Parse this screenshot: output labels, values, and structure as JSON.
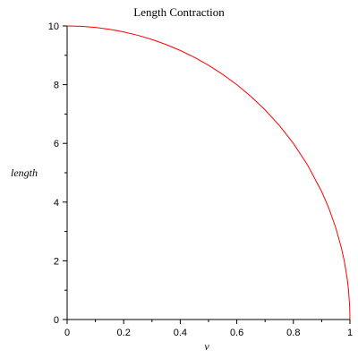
{
  "chart_data": {
    "type": "line",
    "title": "Length Contraction",
    "xlabel": "v",
    "ylabel": "length",
    "xlim": [
      0,
      1
    ],
    "ylim": [
      0,
      10
    ],
    "xticks": [
      "0",
      "0.2",
      "0.4",
      "0.6",
      "0.8",
      "1"
    ],
    "yticks": [
      "0",
      "2",
      "4",
      "6",
      "8",
      "10"
    ],
    "grid": false,
    "series": [
      {
        "color": "#ff0000",
        "x": [
          0,
          0.05,
          0.1,
          0.15,
          0.2,
          0.25,
          0.3,
          0.35,
          0.4,
          0.45,
          0.5,
          0.55,
          0.6,
          0.65,
          0.7,
          0.75,
          0.8,
          0.85,
          0.9,
          0.925,
          0.95,
          0.97,
          0.98,
          0.99,
          0.995,
          0.999,
          1
        ],
        "values": [
          10,
          9.987,
          9.95,
          9.887,
          9.798,
          9.682,
          9.539,
          9.367,
          9.165,
          8.93,
          8.66,
          8.352,
          8.0,
          7.599,
          7.141,
          6.614,
          6.0,
          5.268,
          4.359,
          3.8,
          3.122,
          2.431,
          1.99,
          1.411,
          0.999,
          0.447,
          0
        ]
      }
    ]
  }
}
